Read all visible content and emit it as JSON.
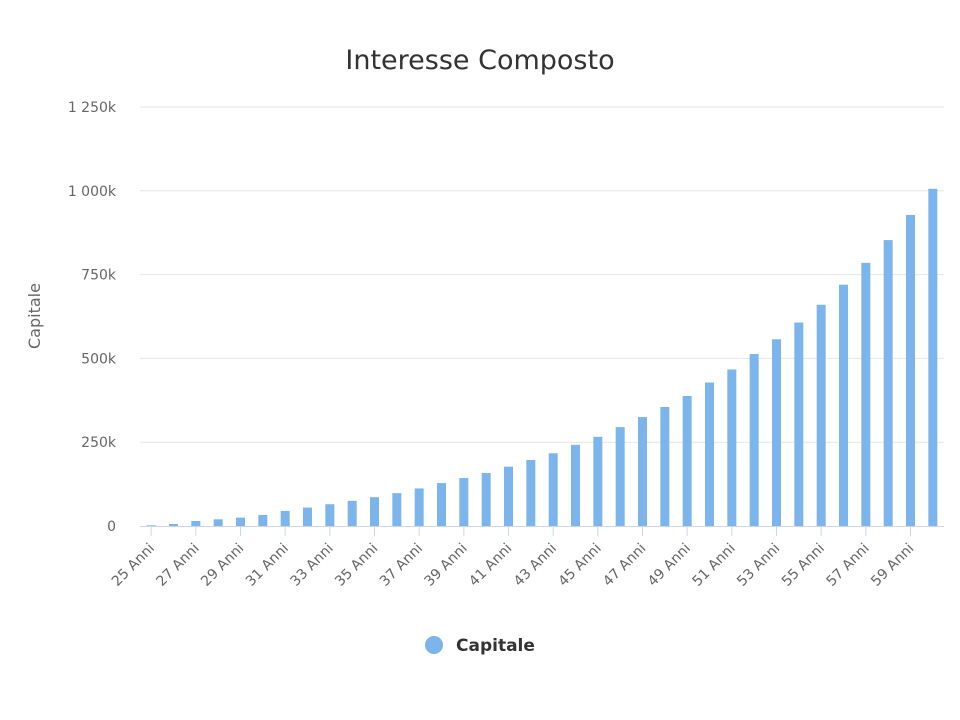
{
  "chart_data": {
    "type": "bar",
    "title": "Interesse Composto",
    "xlabel": "",
    "ylabel": "Capitale",
    "ylim": [
      0,
      1250000
    ],
    "y_tick_labels": [
      "0",
      "250k",
      "500k",
      "750k",
      "1 000k",
      "1 250k"
    ],
    "y_tick_values": [
      0,
      250000,
      500000,
      750000,
      1000000,
      1250000
    ],
    "x_tick_labels": [
      "25 Anni",
      "27 Anni",
      "29 Anni",
      "31 Anni",
      "33 Anni",
      "35 Anni",
      "37 Anni",
      "39 Anni",
      "41 Anni",
      "43 Anni",
      "45 Anni",
      "47 Anni",
      "49 Anni",
      "51 Anni",
      "53 Anni",
      "55 Anni",
      "57 Anni",
      "59 Anni"
    ],
    "categories": [
      "25 Anni",
      "26 Anni",
      "27 Anni",
      "28 Anni",
      "29 Anni",
      "30 Anni",
      "31 Anni",
      "32 Anni",
      "33 Anni",
      "34 Anni",
      "35 Anni",
      "36 Anni",
      "37 Anni",
      "38 Anni",
      "39 Anni",
      "40 Anni",
      "41 Anni",
      "42 Anni",
      "43 Anni",
      "44 Anni",
      "45 Anni",
      "46 Anni",
      "47 Anni",
      "48 Anni",
      "49 Anni",
      "50 Anni",
      "51 Anni",
      "52 Anni",
      "53 Anni",
      "54 Anni",
      "55 Anni",
      "56 Anni",
      "57 Anni",
      "58 Anni",
      "59 Anni",
      "60 Anni"
    ],
    "series": [
      {
        "name": "Capitale",
        "color": "#7cb5ec",
        "values": [
          2000,
          6000,
          15000,
          20000,
          25000,
          33000,
          45000,
          55000,
          65000,
          75000,
          86000,
          98000,
          112000,
          128000,
          143000,
          158000,
          177000,
          197000,
          217000,
          242000,
          266000,
          295000,
          325000,
          355000,
          388000,
          428000,
          467000,
          513000,
          557000,
          607000,
          660000,
          720000,
          785000,
          853000,
          928000,
          1006000
        ]
      }
    ],
    "grid": true,
    "legend_position": "bottom-center"
  }
}
